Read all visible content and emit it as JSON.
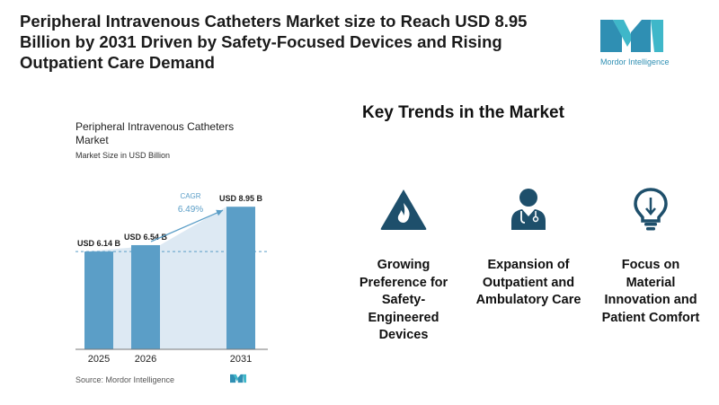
{
  "headline": "Peripheral Intravenous Catheters Market size to Reach USD 8.95 Billion by 2031 Driven by Safety-Focused Devices and Rising Outpatient Care Demand",
  "brand": {
    "name": "Mordor Intelligence",
    "color": "#2f8fb3"
  },
  "chart_data": {
    "type": "bar",
    "title": "Peripheral Intravenous Catheters Market",
    "subtitle": "Market Size in USD Billion",
    "categories": [
      "2025",
      "2026",
      "2031"
    ],
    "values": [
      6.14,
      6.54,
      8.95
    ],
    "value_labels": [
      "USD 6.14 B",
      "USD 6.54 B",
      "USD 8.95 B"
    ],
    "ylim": [
      0,
      9.3
    ],
    "grid": false,
    "cagr_label": "CAGR",
    "cagr_value": "6.49%",
    "bar_color": "#5b9ec7",
    "source": "Source: Mordor Intelligence"
  },
  "trends": {
    "title": "Key Trends in the Market",
    "items": [
      {
        "icon": "warning-fire-icon",
        "label": "Growing Preference for Safety-Engineered Devices"
      },
      {
        "icon": "doctor-icon",
        "label": "Expansion of Outpatient and Ambulatory Care"
      },
      {
        "icon": "lightbulb-icon",
        "label": "Focus on Material Innovation and Patient Comfort"
      }
    ],
    "icon_color": "#1e4f6b"
  }
}
